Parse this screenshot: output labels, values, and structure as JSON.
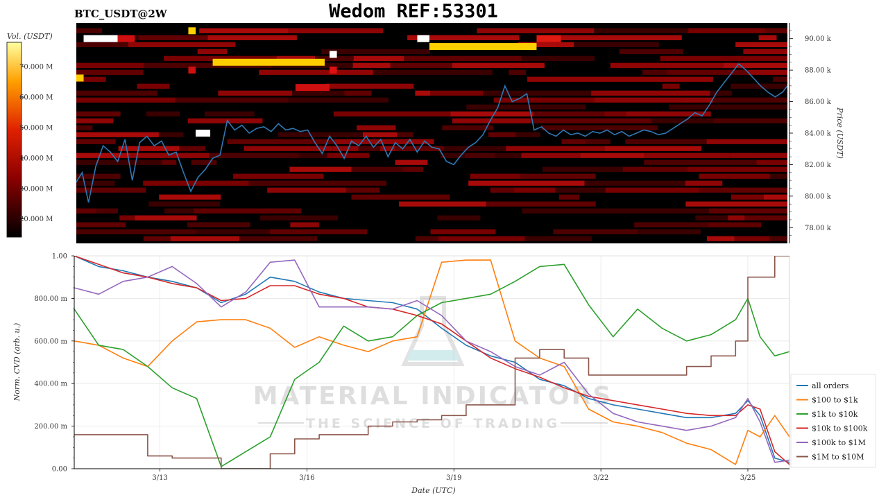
{
  "header": {
    "symbol": "BTC_USDT@2W",
    "title": "Wedom REF:53301"
  },
  "watermark": {
    "brand": "MATERIAL INDICATORS",
    "tagline": "THE SCIENCE OF TRADING"
  },
  "colorbar": {
    "label": "Vol. (USDT)",
    "ticks": [
      "70.000 M",
      "60.000 M",
      "50.000 M",
      "40.000 M",
      "30.000 M",
      "20.000 M"
    ],
    "tick_values": [
      70,
      60,
      50,
      40,
      30,
      20
    ],
    "range": [
      14,
      78
    ]
  },
  "colors": {
    "price_line": "#2f78b4",
    "heatmap_bg": "#000000",
    "all_orders": "#1f77b4",
    "s100_1k": "#ff7f0e",
    "s1k_10k": "#2ca02c",
    "s10k_100k": "#d62728",
    "s100k_1m": "#9467bd",
    "s1m_10m": "#8c564b"
  },
  "chart_data": [
    {
      "type": "heatmap",
      "ylabel": "Price (USDT)",
      "ylim": [
        77,
        91
      ],
      "xlim": [
        0,
        14.6
      ],
      "yticks": [
        {
          "v": 90,
          "label": "90.00 k"
        },
        {
          "v": 88,
          "label": "88.00 k"
        },
        {
          "v": 86,
          "label": "86.00 k"
        },
        {
          "v": 84,
          "label": "84.00 k"
        },
        {
          "v": 82,
          "label": "82.00 k"
        },
        {
          "v": 80,
          "label": "80.00 k"
        },
        {
          "v": 78,
          "label": "78.00 k"
        }
      ],
      "price_series": {
        "x": [
          0,
          0.12,
          0.25,
          0.4,
          0.55,
          0.7,
          0.85,
          1.0,
          1.15,
          1.3,
          1.45,
          1.6,
          1.75,
          1.9,
          2.05,
          2.2,
          2.35,
          2.5,
          2.65,
          2.8,
          2.95,
          3.1,
          3.25,
          3.4,
          3.55,
          3.7,
          3.85,
          4.0,
          4.15,
          4.3,
          4.45,
          4.6,
          4.75,
          4.9,
          5.05,
          5.2,
          5.35,
          5.5,
          5.65,
          5.8,
          5.95,
          6.1,
          6.25,
          6.4,
          6.55,
          6.7,
          6.85,
          7.0,
          7.15,
          7.3,
          7.45,
          7.6,
          7.75,
          7.9,
          8.05,
          8.2,
          8.35,
          8.5,
          8.65,
          8.8,
          8.95,
          9.1,
          9.25,
          9.4,
          9.55,
          9.7,
          9.85,
          10.0,
          10.15,
          10.3,
          10.45,
          10.6,
          10.75,
          10.9,
          11.05,
          11.2,
          11.35,
          11.5,
          11.65,
          11.8,
          11.95,
          12.1,
          12.25,
          12.4,
          12.55,
          12.7,
          12.85,
          13.0,
          13.15,
          13.3,
          13.45,
          13.6,
          13.75,
          13.9,
          14.05,
          14.2,
          14.35,
          14.5,
          14.6
        ],
        "y": [
          80.9,
          81.5,
          79.6,
          81.9,
          83.2,
          82.8,
          82.2,
          83.6,
          81.0,
          83.4,
          83.8,
          83.2,
          83.5,
          82.6,
          82.8,
          81.5,
          80.3,
          81.2,
          81.7,
          82.4,
          82.6,
          84.8,
          84.2,
          84.5,
          84.0,
          84.3,
          84.4,
          84.1,
          84.6,
          84.2,
          84.3,
          84.1,
          84.2,
          83.4,
          82.7,
          83.8,
          83.2,
          82.4,
          83.5,
          83.2,
          83.8,
          83.1,
          83.6,
          82.5,
          83.4,
          83.0,
          83.6,
          82.8,
          83.5,
          83.1,
          83.0,
          82.2,
          82.0,
          82.6,
          83.1,
          83.4,
          83.9,
          84.8,
          85.6,
          87.0,
          86.0,
          86.2,
          86.5,
          84.2,
          84.4,
          84.0,
          83.8,
          84.2,
          83.9,
          84.0,
          83.8,
          84.1,
          84.0,
          84.2,
          83.9,
          84.1,
          83.8,
          84.0,
          84.2,
          84.1,
          83.9,
          84.0,
          84.3,
          84.6,
          84.9,
          85.3,
          85.1,
          85.8,
          86.6,
          87.2,
          87.8,
          88.4,
          88.0,
          87.5,
          87.0,
          86.6,
          86.3,
          86.6,
          87.0
        ]
      }
    },
    {
      "type": "line",
      "xlabel": "Date (UTC)",
      "ylabel": "Norm. CVD (arb. u.)",
      "xlim": [
        0,
        14.6
      ],
      "ylim": [
        0,
        1
      ],
      "xticks": [
        {
          "v": 1.75,
          "label": "3/13"
        },
        {
          "v": 4.75,
          "label": "3/16"
        },
        {
          "v": 7.75,
          "label": "3/19"
        },
        {
          "v": 10.75,
          "label": "3/22"
        },
        {
          "v": 13.75,
          "label": "3/25"
        }
      ],
      "yticks": [
        {
          "v": 1.0,
          "label": "1.00"
        },
        {
          "v": 0.8,
          "label": "800.00 m"
        },
        {
          "v": 0.6,
          "label": "600.00 m"
        },
        {
          "v": 0.4,
          "label": "400.00 m"
        },
        {
          "v": 0.2,
          "label": "200.00 m"
        },
        {
          "v": 0.0,
          "label": "0.00"
        }
      ],
      "x": [
        0,
        0.5,
        1.0,
        1.5,
        2.0,
        2.5,
        3.0,
        3.5,
        4.0,
        4.5,
        5.0,
        5.5,
        6.0,
        6.5,
        7.0,
        7.5,
        8.0,
        8.5,
        9.0,
        9.5,
        10.0,
        10.5,
        11.0,
        11.5,
        12.0,
        12.5,
        13.0,
        13.5,
        13.75,
        14.0,
        14.3,
        14.6
      ],
      "series": [
        {
          "name": "all orders",
          "color_key": "all_orders",
          "values": [
            1.0,
            0.95,
            0.93,
            0.9,
            0.88,
            0.85,
            0.78,
            0.82,
            0.9,
            0.88,
            0.83,
            0.8,
            0.79,
            0.78,
            0.75,
            0.66,
            0.58,
            0.53,
            0.5,
            0.42,
            0.39,
            0.33,
            0.3,
            0.28,
            0.26,
            0.24,
            0.24,
            0.26,
            0.32,
            0.25,
            0.05,
            0.03
          ]
        },
        {
          "name": "$100 to $1k",
          "color_key": "s100_1k",
          "values": [
            0.6,
            0.58,
            0.52,
            0.48,
            0.6,
            0.69,
            0.7,
            0.7,
            0.66,
            0.57,
            0.62,
            0.58,
            0.55,
            0.6,
            0.62,
            0.97,
            0.98,
            0.98,
            0.6,
            0.52,
            0.48,
            0.28,
            0.22,
            0.2,
            0.17,
            0.12,
            0.09,
            0.02,
            0.18,
            0.15,
            0.25,
            0.15
          ]
        },
        {
          "name": "$1k to $10k",
          "color_key": "s1k_10k",
          "values": [
            0.75,
            0.58,
            0.56,
            0.48,
            0.38,
            0.33,
            0.01,
            0.08,
            0.15,
            0.42,
            0.5,
            0.67,
            0.6,
            0.62,
            0.72,
            0.78,
            0.8,
            0.82,
            0.88,
            0.95,
            0.96,
            0.77,
            0.62,
            0.75,
            0.66,
            0.6,
            0.63,
            0.7,
            0.8,
            0.62,
            0.53,
            0.55
          ]
        },
        {
          "name": "$10k to $100k",
          "color_key": "s10k_100k",
          "values": [
            1.0,
            0.96,
            0.92,
            0.9,
            0.87,
            0.85,
            0.79,
            0.8,
            0.86,
            0.86,
            0.82,
            0.8,
            0.76,
            0.75,
            0.72,
            0.68,
            0.6,
            0.52,
            0.47,
            0.43,
            0.38,
            0.34,
            0.32,
            0.3,
            0.28,
            0.26,
            0.25,
            0.25,
            0.3,
            0.28,
            0.08,
            0.02
          ]
        },
        {
          "name": "$100k to $1M",
          "color_key": "s100k_1m",
          "values": [
            0.85,
            0.82,
            0.88,
            0.9,
            0.95,
            0.87,
            0.76,
            0.83,
            0.97,
            0.98,
            0.76,
            0.76,
            0.76,
            0.75,
            0.79,
            0.72,
            0.6,
            0.55,
            0.48,
            0.44,
            0.5,
            0.35,
            0.26,
            0.22,
            0.2,
            0.18,
            0.2,
            0.24,
            0.33,
            0.22,
            0.03,
            0.04
          ]
        },
        {
          "name": "$1M to $10M",
          "color_key": "s1m_10m",
          "values": [
            0.16,
            0.16,
            0.16,
            0.06,
            0.05,
            0.05,
            0.0,
            0.0,
            0.07,
            0.14,
            0.16,
            0.16,
            0.2,
            0.22,
            0.23,
            0.25,
            0.3,
            0.3,
            0.52,
            0.56,
            0.52,
            0.44,
            0.44,
            0.44,
            0.44,
            0.48,
            0.53,
            0.6,
            0.9,
            0.9,
            1.0,
            1.0
          ]
        }
      ]
    }
  ]
}
